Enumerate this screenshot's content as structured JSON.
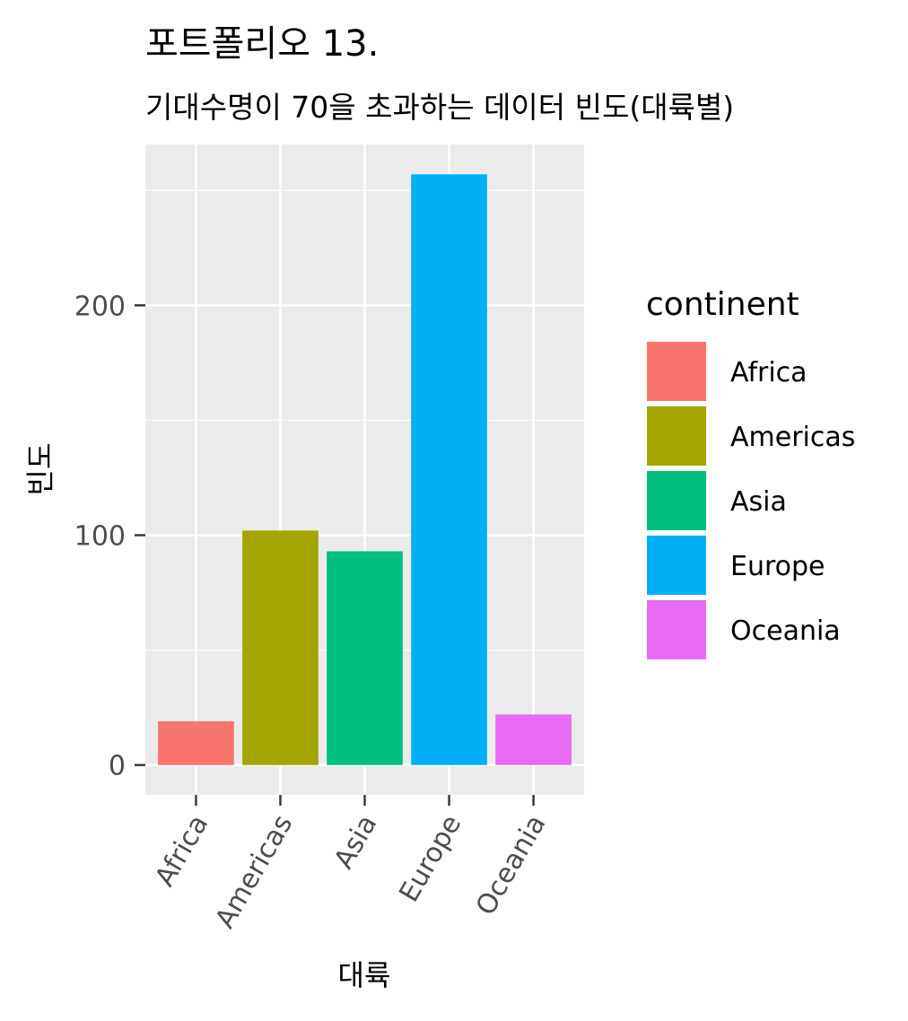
{
  "chart_data": {
    "type": "bar",
    "title": "포트폴리오 13.",
    "subtitle": "기대수명이 70을 초과하는 데이터 빈도(대륙별)",
    "xlabel": "대륙",
    "ylabel": "빈도",
    "categories": [
      "Africa",
      "Americas",
      "Asia",
      "Europe",
      "Oceania"
    ],
    "values": [
      19,
      102,
      93,
      257,
      22
    ],
    "colors": [
      "#F8766D",
      "#A3A500",
      "#00BF7D",
      "#00B0F6",
      "#E76BF3"
    ],
    "ylim": [
      -13,
      270
    ],
    "yticks": [
      0,
      100,
      200
    ],
    "y_minor_ticks": [
      50,
      150,
      250
    ],
    "grid": true,
    "panel_background": "#EBEBEB",
    "grid_color": "#FFFFFF",
    "legend": {
      "title": "continent",
      "position": "right",
      "entries": [
        "Africa",
        "Americas",
        "Asia",
        "Europe",
        "Oceania"
      ]
    }
  }
}
